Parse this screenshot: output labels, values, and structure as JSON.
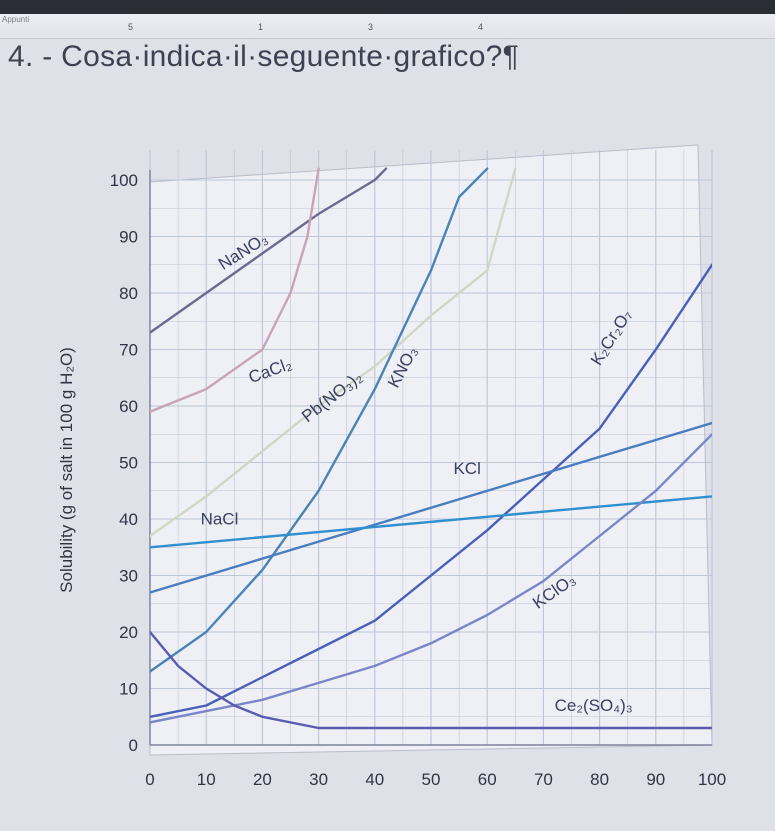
{
  "ruler": {
    "label": "Appunti",
    "marks": [
      "5",
      "1",
      "3",
      "4"
    ]
  },
  "question": "4. - Cosa·indica·il·seguente·grafico?¶",
  "chart_data": {
    "type": "line",
    "title": "",
    "xlabel": "",
    "ylabel": "Solubility (g of salt in 100 g H₂O)",
    "xlim": [
      0,
      100
    ],
    "ylim": [
      0,
      100
    ],
    "xticks": [
      "0",
      "10",
      "20",
      "30",
      "40",
      "50",
      "60",
      "70",
      "80",
      "90",
      "100"
    ],
    "yticks": [
      "0",
      "10",
      "20",
      "30",
      "40",
      "50",
      "60",
      "70",
      "80",
      "90",
      "100"
    ],
    "grid": true,
    "series": [
      {
        "name": "NaNO₃",
        "color": "#6c6a8e",
        "label_at": [
          13,
          84
        ],
        "label_angle": -32,
        "x": [
          0,
          10,
          20,
          30,
          40,
          42
        ],
        "y": [
          73,
          80,
          87,
          94,
          100,
          102
        ]
      },
      {
        "name": "CaCl₂",
        "color": "#c9a4b9",
        "label_at": [
          18,
          64
        ],
        "label_angle": -20,
        "x": [
          0,
          10,
          20,
          25,
          28,
          30
        ],
        "y": [
          59,
          63,
          70,
          80,
          90,
          102
        ]
      },
      {
        "name": "Pb(NO₃)₂",
        "color": "#cfd8c4",
        "label_at": [
          28,
          57
        ],
        "label_angle": -38,
        "x": [
          0,
          10,
          20,
          30,
          40,
          50,
          60,
          65
        ],
        "y": [
          37,
          44,
          52,
          60,
          67,
          76,
          84,
          102
        ]
      },
      {
        "name": "KNO₃",
        "color": "#4a84b6",
        "label_at": [
          44,
          63
        ],
        "label_angle": -62,
        "x": [
          0,
          10,
          20,
          30,
          40,
          50,
          55,
          60
        ],
        "y": [
          13,
          20,
          31,
          45,
          63,
          84,
          97,
          102
        ]
      },
      {
        "name": "K₂Cr₂O₇",
        "color": "#4a5fb8",
        "label_at": [
          80,
          67
        ],
        "label_angle": -58,
        "x": [
          0,
          10,
          20,
          30,
          40,
          50,
          60,
          70,
          80,
          90,
          100
        ],
        "y": [
          5,
          7,
          12,
          17,
          22,
          30,
          38,
          47,
          56,
          70,
          85
        ]
      },
      {
        "name": "KCl",
        "color": "#4a7dc0",
        "label_at": [
          54,
          48
        ],
        "label_angle": 0,
        "x": [
          0,
          100
        ],
        "y": [
          27,
          57
        ]
      },
      {
        "name": "NaCl",
        "color": "#2f8fcf",
        "label_at": [
          9,
          39
        ],
        "label_angle": 0,
        "x": [
          0,
          100
        ],
        "y": [
          35,
          44
        ]
      },
      {
        "name": "KClO₃",
        "color": "#7b86c9",
        "label_at": [
          69,
          24
        ],
        "label_angle": -35,
        "x": [
          0,
          10,
          20,
          30,
          40,
          50,
          60,
          70,
          80,
          90,
          100
        ],
        "y": [
          4,
          6,
          8,
          11,
          14,
          18,
          23,
          29,
          37,
          45,
          55
        ]
      },
      {
        "name": "Ce₂(SO₄)₃",
        "color": "#5a5bb0",
        "label_at": [
          72,
          6
        ],
        "label_angle": 0,
        "x": [
          0,
          5,
          10,
          15,
          20,
          30,
          40,
          60,
          80,
          100
        ],
        "y": [
          20,
          14,
          10,
          7,
          5,
          3,
          3,
          3,
          3,
          3
        ]
      }
    ]
  }
}
